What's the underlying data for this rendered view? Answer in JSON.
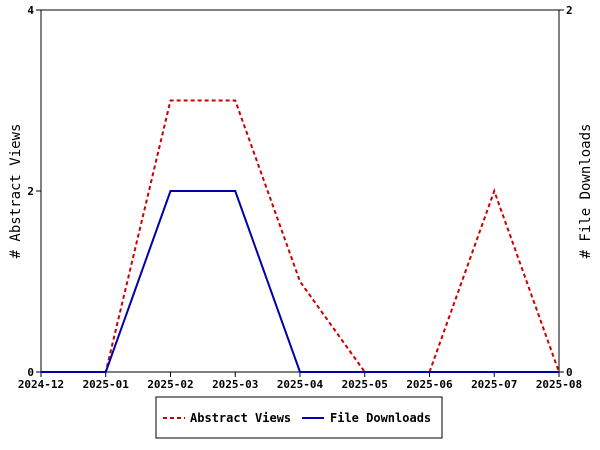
{
  "chart_data": {
    "type": "line",
    "categories": [
      "2024-12",
      "2025-01",
      "2025-02",
      "2025-03",
      "2025-04",
      "2025-05",
      "2025-06",
      "2025-07",
      "2025-08"
    ],
    "series": [
      {
        "name": "Abstract Views",
        "axis": "left",
        "color": "#cc0000",
        "style": "dashed",
        "values": [
          0,
          0,
          3,
          3,
          1,
          0,
          0,
          2,
          0
        ]
      },
      {
        "name": "File Downloads",
        "axis": "right",
        "color": "#0000aa",
        "style": "solid",
        "values": [
          0,
          0,
          1,
          1,
          0,
          0,
          0,
          0,
          0
        ]
      }
    ],
    "ylabel": "# Abstract Views",
    "y2label": "# File Downloads",
    "ylim": [
      0,
      4
    ],
    "y2lim": [
      0,
      2
    ],
    "yticks": [
      0,
      2,
      4
    ],
    "y2ticks": [
      0,
      2
    ],
    "grid": false,
    "legend_placement": "bottom-center"
  }
}
